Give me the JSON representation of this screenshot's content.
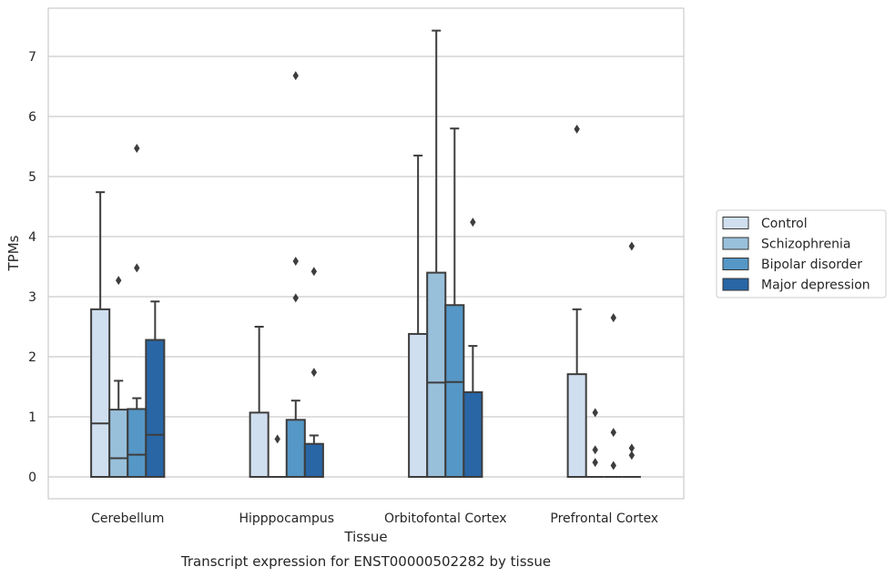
{
  "chart_data": {
    "type": "box",
    "xlabel": "Tissue",
    "ylabel": "TPMs",
    "caption": "Transcript expression for ENST00000502282 by tissue",
    "ylim": [
      -0.35,
      7.8
    ],
    "yticks": [
      0,
      1,
      2,
      3,
      4,
      5,
      6,
      7
    ],
    "grid": "horizontal",
    "legend_position": "right",
    "categories": [
      "Cerebellum",
      "Hipppocampus",
      "Orbitofontal Cortex",
      "Prefrontal Cortex"
    ],
    "series": [
      {
        "name": "Control",
        "color": "#d0dff0",
        "boxes": [
          {
            "q1": 0,
            "median": 0.89,
            "q3": 2.79,
            "whisker_low": 0,
            "whisker_high": 4.74,
            "outliers": []
          },
          {
            "q1": 0,
            "median": 0,
            "q3": 1.07,
            "whisker_low": 0,
            "whisker_high": 2.5,
            "outliers": []
          },
          {
            "q1": 0,
            "median": 0,
            "q3": 2.38,
            "whisker_low": 0,
            "whisker_high": 5.35,
            "outliers": []
          },
          {
            "q1": 0,
            "median": 0,
            "q3": 1.71,
            "whisker_low": 0,
            "whisker_high": 2.79,
            "outliers": [
              5.79
            ]
          }
        ]
      },
      {
        "name": "Schizophrenia",
        "color": "#99c0db",
        "boxes": [
          {
            "q1": 0,
            "median": 0.31,
            "q3": 1.12,
            "whisker_low": 0,
            "whisker_high": 1.6,
            "outliers": [
              3.27
            ]
          },
          {
            "q1": 0,
            "median": 0,
            "q3": 0,
            "whisker_low": 0,
            "whisker_high": 0,
            "outliers": [
              0.63
            ]
          },
          {
            "q1": 0,
            "median": 1.57,
            "q3": 3.4,
            "whisker_low": 0,
            "whisker_high": 7.43,
            "outliers": []
          },
          {
            "q1": 0,
            "median": 0,
            "q3": 0,
            "whisker_low": 0,
            "whisker_high": 0,
            "outliers": [
              0.24,
              0.45,
              1.07
            ]
          }
        ]
      },
      {
        "name": "Bipolar disorder",
        "color": "#5597c6",
        "boxes": [
          {
            "q1": 0,
            "median": 0.37,
            "q3": 1.13,
            "whisker_low": 0,
            "whisker_high": 1.31,
            "outliers": [
              3.48,
              5.47
            ]
          },
          {
            "q1": 0,
            "median": 0,
            "q3": 0.95,
            "whisker_low": 0,
            "whisker_high": 1.27,
            "outliers": [
              2.98,
              3.59,
              6.68
            ]
          },
          {
            "q1": 0,
            "median": 1.58,
            "q3": 2.86,
            "whisker_low": 0,
            "whisker_high": 5.8,
            "outliers": []
          },
          {
            "q1": 0,
            "median": 0,
            "q3": 0,
            "whisker_low": 0,
            "whisker_high": 0,
            "outliers": [
              0.19,
              0.74,
              2.65
            ]
          }
        ]
      },
      {
        "name": "Major depression",
        "color": "#2866a6",
        "boxes": [
          {
            "q1": 0,
            "median": 0.7,
            "q3": 2.28,
            "whisker_low": 0,
            "whisker_high": 2.92,
            "outliers": []
          },
          {
            "q1": 0,
            "median": 0,
            "q3": 0.55,
            "whisker_low": 0,
            "whisker_high": 0.69,
            "outliers": [
              1.74,
              3.42
            ]
          },
          {
            "q1": 0,
            "median": 0,
            "q3": 1.41,
            "whisker_low": 0,
            "whisker_high": 2.18,
            "outliers": [
              4.24
            ]
          },
          {
            "q1": 0,
            "median": 0,
            "q3": 0,
            "whisker_low": 0,
            "whisker_high": 0,
            "outliers": [
              0.36,
              0.48,
              3.84
            ]
          }
        ]
      }
    ]
  }
}
